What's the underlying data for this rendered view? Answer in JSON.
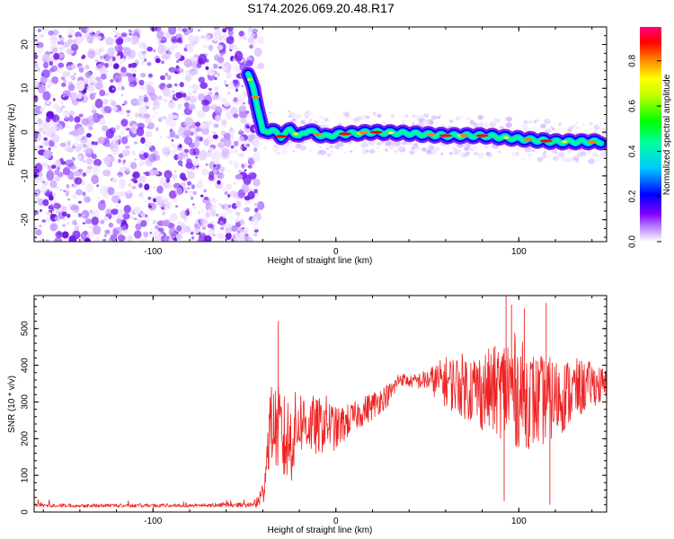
{
  "title": "S174.2026.069.20.48.R17",
  "chart_data": [
    {
      "type": "heatmap",
      "xlabel": "Height of straight line (km)",
      "ylabel": "Frequency (Hz)",
      "xlim": [
        -165,
        148
      ],
      "ylim": [
        -25,
        24
      ],
      "xticks": [
        "-100",
        "0",
        "100"
      ],
      "xtick_values": [
        -100,
        0,
        100
      ],
      "yticks": [
        "-20",
        "-10",
        "0",
        "10",
        "20"
      ],
      "ytick_values": [
        -20,
        -10,
        0,
        10,
        20
      ],
      "noise_region_end_km": -47,
      "ridge": {
        "description": "carrier frequency line",
        "x": [
          -48,
          -45,
          -42,
          -40,
          -35,
          -30,
          -25,
          -20,
          -15,
          -10,
          -5,
          0,
          10,
          20,
          40,
          60,
          80,
          100,
          120,
          145
        ],
        "y": [
          13,
          10,
          4,
          0,
          0.5,
          -1,
          0.5,
          -1,
          0.5,
          -0.5,
          -1,
          -0.5,
          -0.3,
          0,
          -0.3,
          -0.8,
          -0.8,
          -1.5,
          -2.2,
          -2.2
        ]
      },
      "colorbar": {
        "label": "Normalized spectral amplitude",
        "range": [
          0,
          0.95
        ],
        "ticks": [
          "0.0",
          "0.2",
          "0.4",
          "0.6",
          "0.8"
        ],
        "tick_values": [
          0,
          0.2,
          0.4,
          0.6,
          0.8
        ],
        "colors": [
          "#ffffff",
          "#8000ff",
          "#0000ff",
          "#00ffff",
          "#00ff00",
          "#ffff00",
          "#ff8000",
          "#ff0000",
          "#ff0080"
        ]
      }
    },
    {
      "type": "line",
      "xlabel": "Height of straight line (km)",
      "ylabel": "SNR (10 * v/v)",
      "xlim": [
        -165,
        148
      ],
      "ylim": [
        0,
        590
      ],
      "xticks": [
        "-100",
        "0",
        "100"
      ],
      "xtick_values": [
        -100,
        0,
        100
      ],
      "yticks": [
        "0",
        "100",
        "200",
        "300",
        "400",
        "500"
      ],
      "ytick_values": [
        0,
        100,
        200,
        300,
        400,
        500
      ],
      "color": "#ee2222",
      "series": [
        {
          "name": "SNR",
          "x": [
            -165,
            -120,
            -80,
            -45,
            -40,
            -36,
            -32,
            -28,
            -24,
            -20,
            -15,
            -10,
            -5,
            0,
            10,
            20,
            30,
            35,
            40,
            50,
            60,
            70,
            80,
            90,
            95,
            100,
            110,
            120,
            130,
            140,
            148
          ],
          "y": [
            18,
            18,
            18,
            20,
            45,
            240,
            230,
            190,
            200,
            250,
            240,
            230,
            245,
            225,
            260,
            290,
            325,
            365,
            355,
            360,
            355,
            345,
            330,
            330,
            340,
            325,
            300,
            310,
            330,
            350,
            340
          ],
          "noise_amp": [
            5,
            5,
            5,
            6,
            40,
            100,
            120,
            130,
            120,
            90,
            85,
            80,
            75,
            60,
            40,
            40,
            30,
            20,
            15,
            30,
            70,
            90,
            110,
            130,
            170,
            150,
            130,
            110,
            90,
            60,
            50
          ]
        }
      ],
      "peaks": [
        {
          "x": -31.5,
          "y": 520
        },
        {
          "x": 93,
          "y": 590
        },
        {
          "x": 96,
          "y": 565
        },
        {
          "x": 103,
          "y": 555
        },
        {
          "x": 115,
          "y": 570
        },
        {
          "x": 92,
          "y": 30
        },
        {
          "x": 117,
          "y": 20
        }
      ]
    }
  ]
}
